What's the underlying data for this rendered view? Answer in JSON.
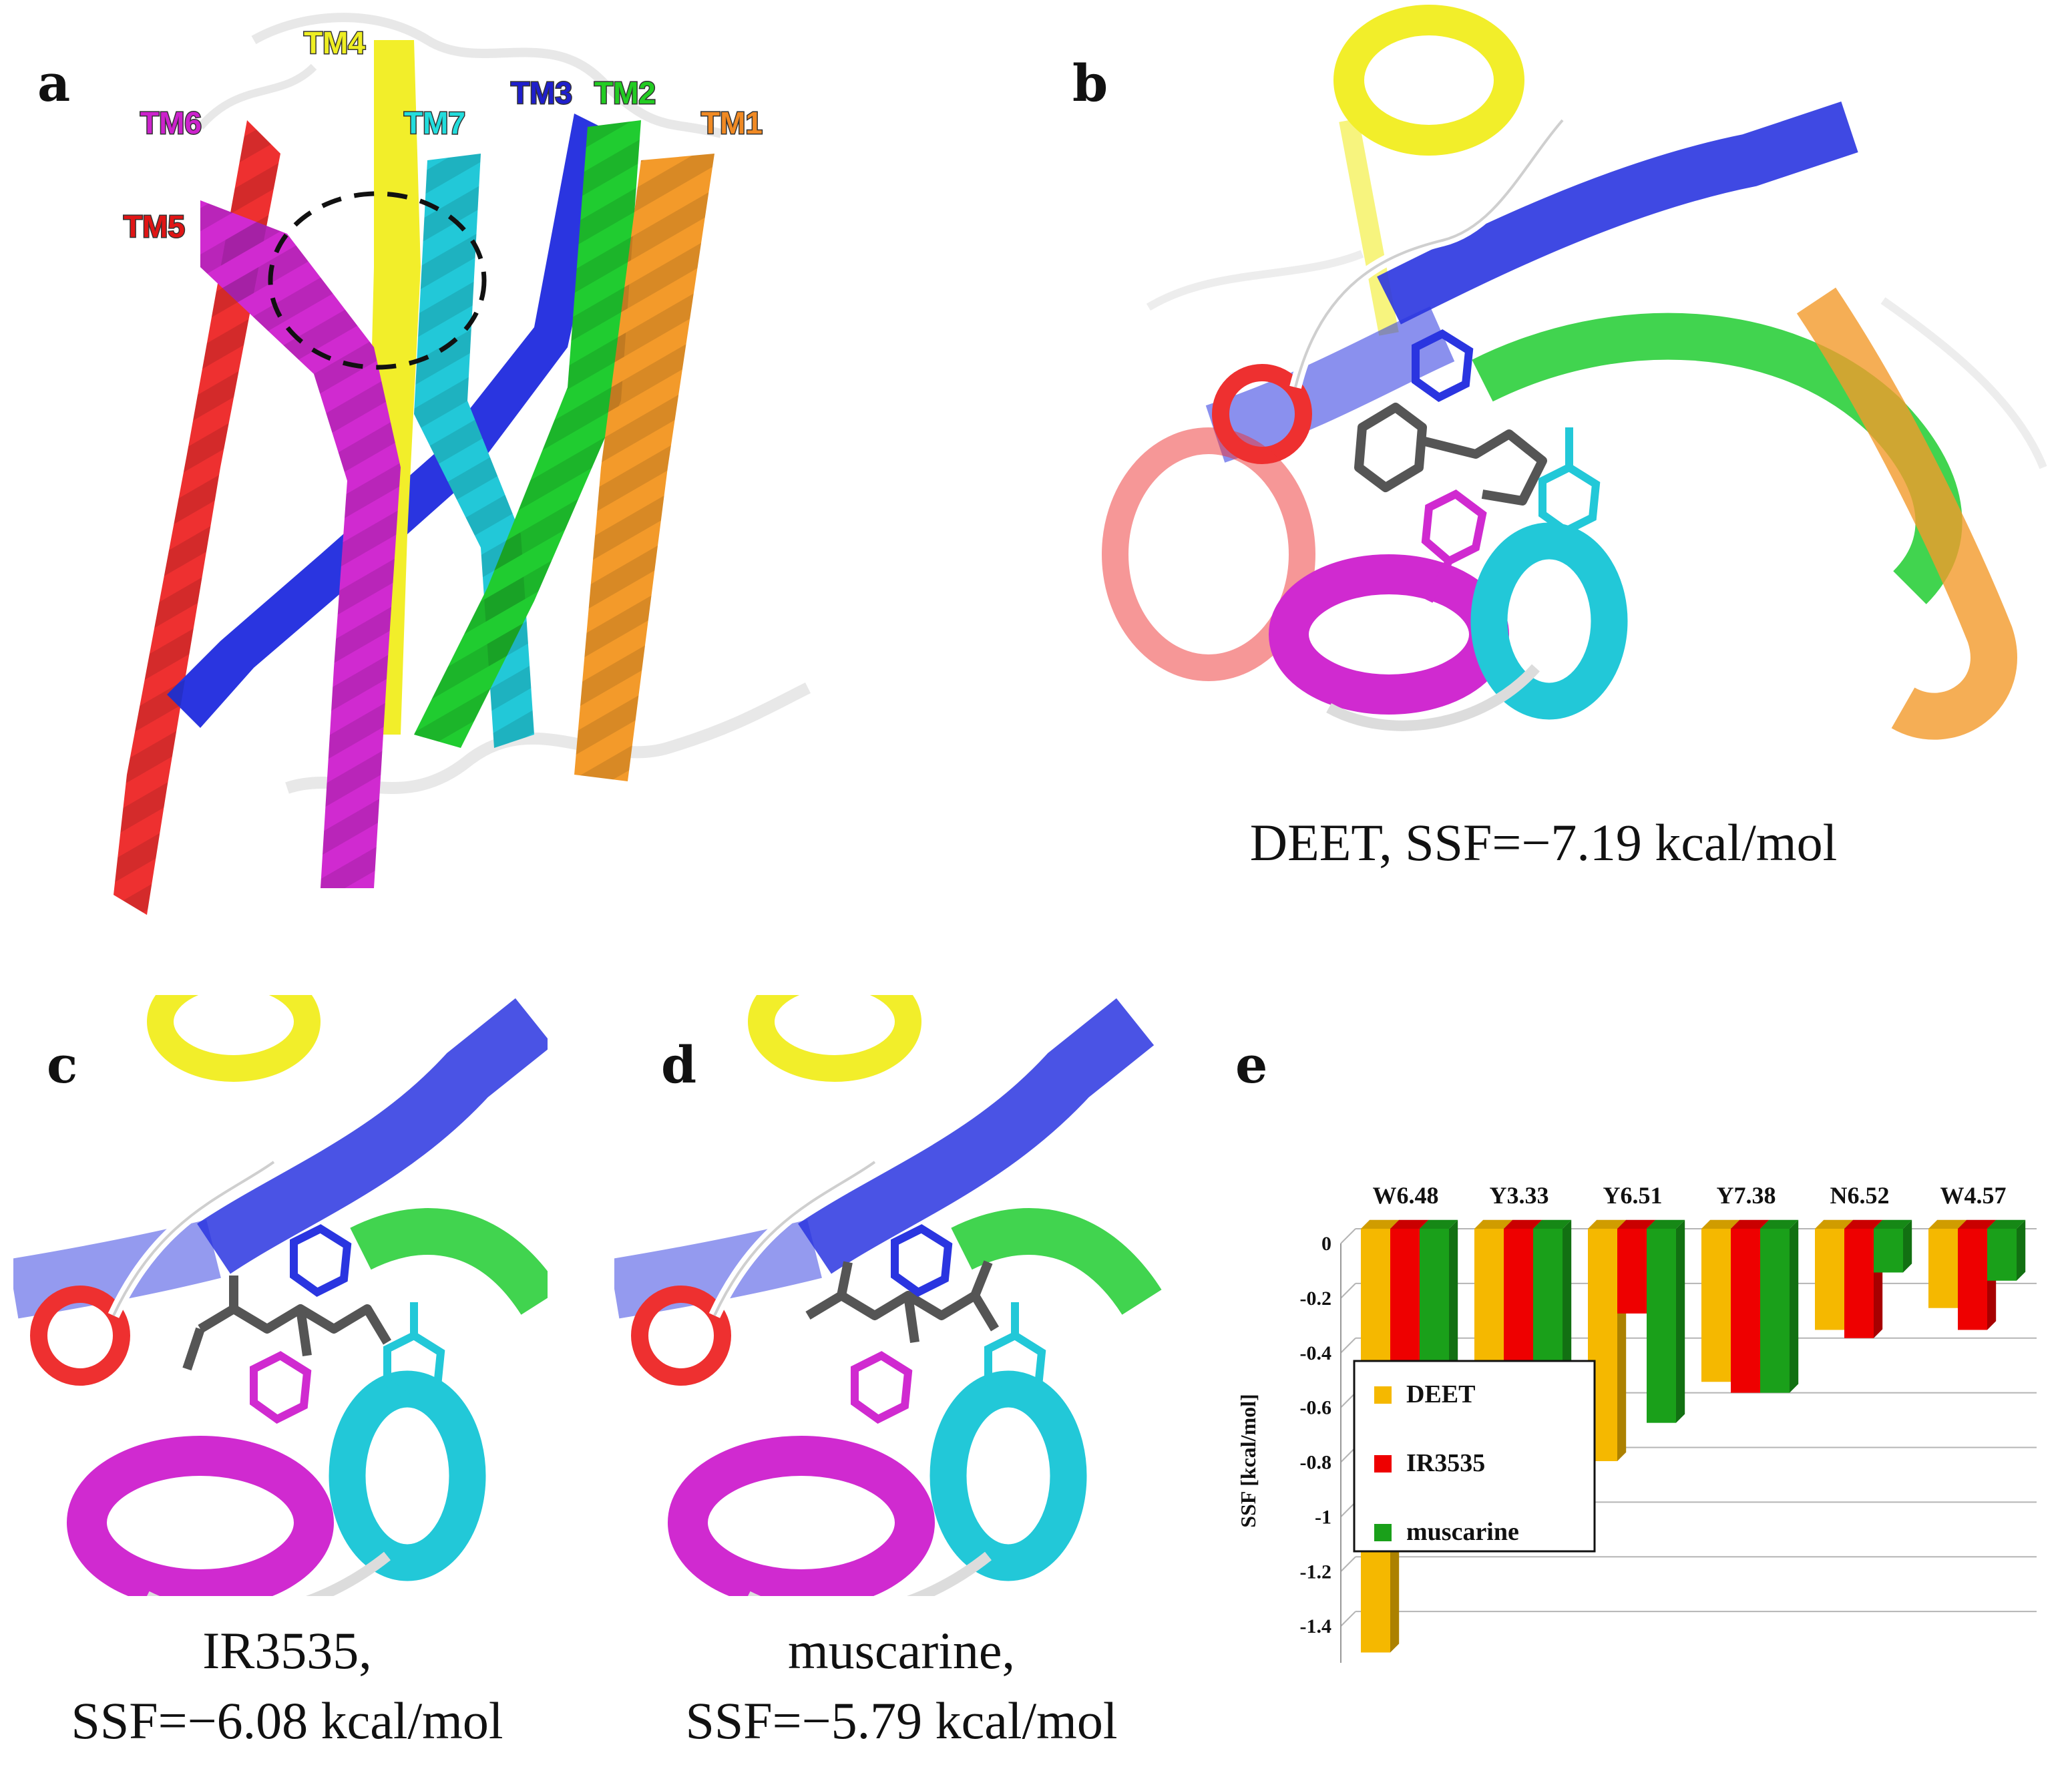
{
  "panels": {
    "a": {
      "letter": "a",
      "tm_labels": [
        {
          "text": "TM1",
          "color": "#f08a24"
        },
        {
          "text": "TM2",
          "color": "#22cc22"
        },
        {
          "text": "TM3",
          "color": "#1f1fcc"
        },
        {
          "text": "TM4",
          "color": "#eeee22"
        },
        {
          "text": "TM5",
          "color": "#e01515"
        },
        {
          "text": "TM6",
          "color": "#cc22cc"
        },
        {
          "text": "TM7",
          "color": "#22dddd"
        }
      ]
    },
    "b": {
      "letter": "b",
      "caption": "DEET, SSF=−7.19 kcal/mol"
    },
    "c": {
      "letter": "c",
      "caption_line1": "IR3535,",
      "caption_line2": "SSF=−6.08 kcal/mol"
    },
    "d": {
      "letter": "d",
      "caption_line1": "muscarine,",
      "caption_line2": "SSF=−5.79 kcal/mol"
    },
    "e": {
      "letter": "e"
    }
  },
  "colors": {
    "tm1": "#f39a2a",
    "tm2": "#20cc30",
    "tm3": "#2a35e0",
    "tm4": "#f2ee2a",
    "tm5": "#ee3030",
    "tm6": "#d02ad0",
    "tm7": "#22c8d8",
    "loop": "#e6e6e6",
    "ligand": "#555555"
  },
  "chart_data": {
    "type": "bar",
    "categories": [
      "W6.48",
      "Y3.33",
      "Y6.51",
      "Y7.38",
      "N6.52",
      "W4.57"
    ],
    "series": [
      {
        "name": "DEET",
        "color": "#f5b800",
        "values": [
          -1.55,
          -0.68,
          -0.85,
          -0.56,
          -0.37,
          -0.29
        ]
      },
      {
        "name": "IR3535",
        "color": "#ee0000",
        "values": [
          -0.76,
          -0.91,
          -0.31,
          -0.6,
          -0.4,
          -0.37
        ]
      },
      {
        "name": "muscarine",
        "color": "#1aa01a",
        "values": [
          -0.96,
          -0.56,
          -0.71,
          -0.6,
          -0.16,
          -0.19
        ]
      }
    ],
    "ylabel": "SSF [kcal/mol]",
    "ylim": [
      -1.6,
      0
    ],
    "yticks": [
      "0",
      "-0.2",
      "-0.4",
      "-0.6",
      "-0.8",
      "-1",
      "-1.2",
      "-1.4",
      "-1.6"
    ],
    "yticks_values": [
      0,
      -0.2,
      -0.4,
      -0.6,
      -0.8,
      -1.0,
      -1.2,
      -1.4,
      -1.6
    ],
    "legend_position": "bottom-right",
    "grid": true
  }
}
